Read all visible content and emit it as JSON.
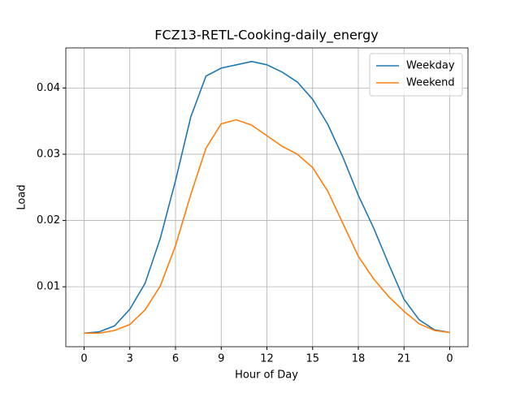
{
  "chart_data": {
    "type": "line",
    "title": "FCZ13-RETL-Cooking-daily_energy",
    "xlabel": "Hour of Day",
    "ylabel": "Load",
    "x": [
      0,
      1,
      2,
      3,
      4,
      5,
      6,
      7,
      8,
      9,
      10,
      11,
      12,
      13,
      14,
      15,
      16,
      17,
      18,
      19,
      20,
      21,
      22,
      23,
      24
    ],
    "series": [
      {
        "name": "Weekday",
        "color": "#1f77b4",
        "values": [
          0.003,
          0.0032,
          0.0041,
          0.0066,
          0.0105,
          0.0173,
          0.026,
          0.0356,
          0.0418,
          0.043,
          0.0435,
          0.044,
          0.0435,
          0.0424,
          0.0409,
          0.0383,
          0.0345,
          0.0295,
          0.0238,
          0.0189,
          0.0134,
          0.0081,
          0.005,
          0.0035,
          0.0031
        ]
      },
      {
        "name": "Weekend",
        "color": "#ff7f0e",
        "values": [
          0.003,
          0.003,
          0.0034,
          0.0043,
          0.0065,
          0.0101,
          0.0162,
          0.0239,
          0.0309,
          0.0346,
          0.0352,
          0.0344,
          0.0328,
          0.0312,
          0.03,
          0.028,
          0.0244,
          0.0195,
          0.0146,
          0.0112,
          0.0085,
          0.0063,
          0.0044,
          0.0034,
          0.0031
        ]
      }
    ],
    "xlim": [
      -1.2,
      25.2
    ],
    "ylim": [
      0.00095,
      0.04605
    ],
    "xticks": [
      0,
      3,
      6,
      9,
      12,
      15,
      18,
      21,
      {
        "value": 24,
        "label": "0"
      }
    ],
    "yticks": [
      0.01,
      0.02,
      0.03,
      0.04
    ],
    "grid": true,
    "legend": "upper-right"
  }
}
